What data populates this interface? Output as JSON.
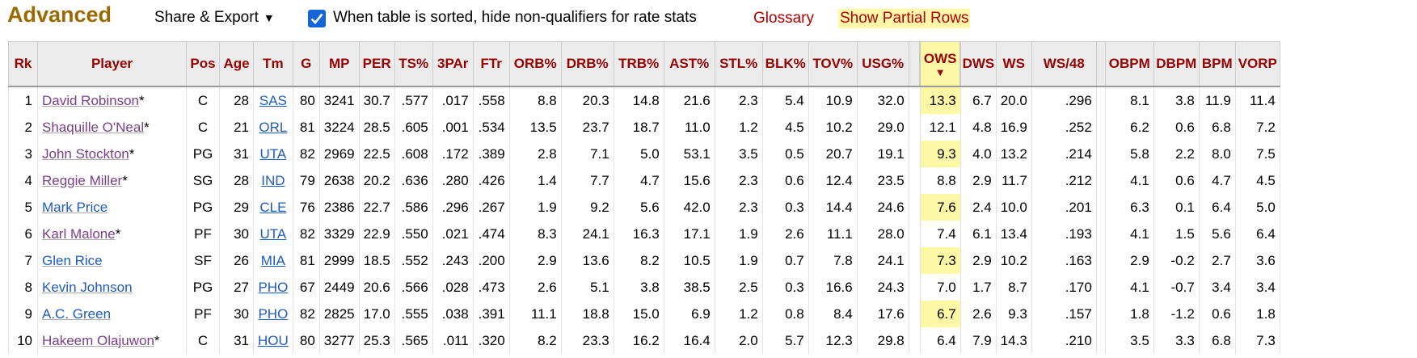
{
  "header": {
    "title": "Advanced",
    "share_label": "Share & Export",
    "share_caret": "▼",
    "filter_checked": true,
    "filter_label": "When table is sorted, hide non-qualifiers for rate stats",
    "glossary_label": "Glossary",
    "partial_rows_label": "Show Partial Rows"
  },
  "table": {
    "columns": [
      "Rk",
      "Player",
      "Pos",
      "Age",
      "Tm",
      "G",
      "MP",
      "PER",
      "TS%",
      "3PAr",
      "FTr",
      "ORB%",
      "DRB%",
      "TRB%",
      "AST%",
      "STL%",
      "BLK%",
      "TOV%",
      "USG%",
      "",
      "OWS",
      "DWS",
      "WS",
      "WS/48",
      "",
      "OBPM",
      "DBPM",
      "BPM",
      "VORP"
    ],
    "sort_indicator": "▼",
    "rows": [
      {
        "rk": "1",
        "player": "David Robinson",
        "hof": "*",
        "pos": "C",
        "age": "28",
        "tm": "SAS",
        "g": "80",
        "mp": "3241",
        "per": "30.7",
        "ts": ".577",
        "par3": ".017",
        "ftr": ".558",
        "orb": "8.8",
        "drb": "20.3",
        "trb": "14.8",
        "ast": "21.6",
        "stl": "2.3",
        "blk": "5.4",
        "tov": "10.9",
        "usg": "32.0",
        "ows": "13.3",
        "dws": "6.7",
        "ws": "20.0",
        "ws48": ".296",
        "obpm": "8.1",
        "dbpm": "3.8",
        "bpm": "11.9",
        "vorp": "11.4"
      },
      {
        "rk": "2",
        "player": "Shaquille O'Neal",
        "hof": "*",
        "pos": "C",
        "age": "21",
        "tm": "ORL",
        "g": "81",
        "mp": "3224",
        "per": "28.5",
        "ts": ".605",
        "par3": ".001",
        "ftr": ".534",
        "orb": "13.5",
        "drb": "23.7",
        "trb": "18.7",
        "ast": "11.0",
        "stl": "1.2",
        "blk": "4.5",
        "tov": "10.2",
        "usg": "29.0",
        "ows": "12.1",
        "dws": "4.8",
        "ws": "16.9",
        "ws48": ".252",
        "obpm": "6.2",
        "dbpm": "0.6",
        "bpm": "6.8",
        "vorp": "7.2"
      },
      {
        "rk": "3",
        "player": "John Stockton",
        "hof": "*",
        "pos": "PG",
        "age": "31",
        "tm": "UTA",
        "g": "82",
        "mp": "2969",
        "per": "22.5",
        "ts": ".608",
        "par3": ".172",
        "ftr": ".389",
        "orb": "2.8",
        "drb": "7.1",
        "trb": "5.0",
        "ast": "53.1",
        "stl": "3.5",
        "blk": "0.5",
        "tov": "20.7",
        "usg": "19.1",
        "ows": "9.3",
        "dws": "4.0",
        "ws": "13.2",
        "ws48": ".214",
        "obpm": "5.8",
        "dbpm": "2.2",
        "bpm": "8.0",
        "vorp": "7.5"
      },
      {
        "rk": "4",
        "player": "Reggie Miller",
        "hof": "*",
        "pos": "SG",
        "age": "28",
        "tm": "IND",
        "g": "79",
        "mp": "2638",
        "per": "20.2",
        "ts": ".636",
        "par3": ".280",
        "ftr": ".426",
        "orb": "1.4",
        "drb": "7.7",
        "trb": "4.7",
        "ast": "15.6",
        "stl": "2.3",
        "blk": "0.6",
        "tov": "12.4",
        "usg": "23.5",
        "ows": "8.8",
        "dws": "2.9",
        "ws": "11.7",
        "ws48": ".212",
        "obpm": "4.1",
        "dbpm": "0.6",
        "bpm": "4.7",
        "vorp": "4.5"
      },
      {
        "rk": "5",
        "player": "Mark Price",
        "hof": "",
        "pos": "PG",
        "age": "29",
        "tm": "CLE",
        "g": "76",
        "mp": "2386",
        "per": "22.7",
        "ts": ".586",
        "par3": ".296",
        "ftr": ".267",
        "orb": "1.9",
        "drb": "9.2",
        "trb": "5.6",
        "ast": "42.0",
        "stl": "2.3",
        "blk": "0.3",
        "tov": "14.4",
        "usg": "24.6",
        "ows": "7.6",
        "dws": "2.4",
        "ws": "10.0",
        "ws48": ".201",
        "obpm": "6.3",
        "dbpm": "0.1",
        "bpm": "6.4",
        "vorp": "5.0"
      },
      {
        "rk": "6",
        "player": "Karl Malone",
        "hof": "*",
        "pos": "PF",
        "age": "30",
        "tm": "UTA",
        "g": "82",
        "mp": "3329",
        "per": "22.9",
        "ts": ".550",
        "par3": ".021",
        "ftr": ".474",
        "orb": "8.3",
        "drb": "24.1",
        "trb": "16.3",
        "ast": "17.1",
        "stl": "1.9",
        "blk": "2.6",
        "tov": "11.1",
        "usg": "28.0",
        "ows": "7.4",
        "dws": "6.1",
        "ws": "13.4",
        "ws48": ".193",
        "obpm": "4.1",
        "dbpm": "1.5",
        "bpm": "5.6",
        "vorp": "6.4"
      },
      {
        "rk": "7",
        "player": "Glen Rice",
        "hof": "",
        "pos": "SF",
        "age": "26",
        "tm": "MIA",
        "g": "81",
        "mp": "2999",
        "per": "18.5",
        "ts": ".552",
        "par3": ".243",
        "ftr": ".200",
        "orb": "2.9",
        "drb": "13.6",
        "trb": "8.2",
        "ast": "10.5",
        "stl": "1.9",
        "blk": "0.7",
        "tov": "7.8",
        "usg": "24.1",
        "ows": "7.3",
        "dws": "2.9",
        "ws": "10.2",
        "ws48": ".163",
        "obpm": "2.9",
        "dbpm": "-0.2",
        "bpm": "2.7",
        "vorp": "3.6"
      },
      {
        "rk": "8",
        "player": "Kevin Johnson",
        "hof": "",
        "pos": "PG",
        "age": "27",
        "tm": "PHO",
        "g": "67",
        "mp": "2449",
        "per": "20.6",
        "ts": ".566",
        "par3": ".028",
        "ftr": ".473",
        "orb": "2.6",
        "drb": "5.1",
        "trb": "3.8",
        "ast": "38.5",
        "stl": "2.5",
        "blk": "0.3",
        "tov": "16.6",
        "usg": "24.3",
        "ows": "7.0",
        "dws": "1.7",
        "ws": "8.7",
        "ws48": ".170",
        "obpm": "4.1",
        "dbpm": "-0.7",
        "bpm": "3.4",
        "vorp": "3.4"
      },
      {
        "rk": "9",
        "player": "A.C. Green",
        "hof": "",
        "pos": "PF",
        "age": "30",
        "tm": "PHO",
        "g": "82",
        "mp": "2825",
        "per": "17.0",
        "ts": ".555",
        "par3": ".038",
        "ftr": ".391",
        "orb": "11.1",
        "drb": "18.8",
        "trb": "15.0",
        "ast": "6.9",
        "stl": "1.2",
        "blk": "0.8",
        "tov": "8.4",
        "usg": "17.6",
        "ows": "6.7",
        "dws": "2.6",
        "ws": "9.3",
        "ws48": ".157",
        "obpm": "1.8",
        "dbpm": "-1.2",
        "bpm": "0.6",
        "vorp": "1.8"
      },
      {
        "rk": "10",
        "player": "Hakeem Olajuwon",
        "hof": "*",
        "pos": "C",
        "age": "31",
        "tm": "HOU",
        "g": "80",
        "mp": "3277",
        "per": "25.3",
        "ts": ".565",
        "par3": ".011",
        "ftr": ".320",
        "orb": "8.2",
        "drb": "23.3",
        "trb": "16.2",
        "ast": "16.4",
        "stl": "2.0",
        "blk": "5.7",
        "tov": "12.3",
        "usg": "29.8",
        "ows": "6.4",
        "dws": "7.9",
        "ws": "14.3",
        "ws48": ".210",
        "obpm": "3.5",
        "dbpm": "3.3",
        "bpm": "6.8",
        "vorp": "7.3"
      }
    ]
  },
  "colors": {
    "title": "#9a6a00",
    "header_text": "#9a0000",
    "sorted_column": "#fcf8a6",
    "visited_link": "#7b3e8a",
    "link": "#1f5bbf",
    "checkbox": "#1466d8"
  }
}
